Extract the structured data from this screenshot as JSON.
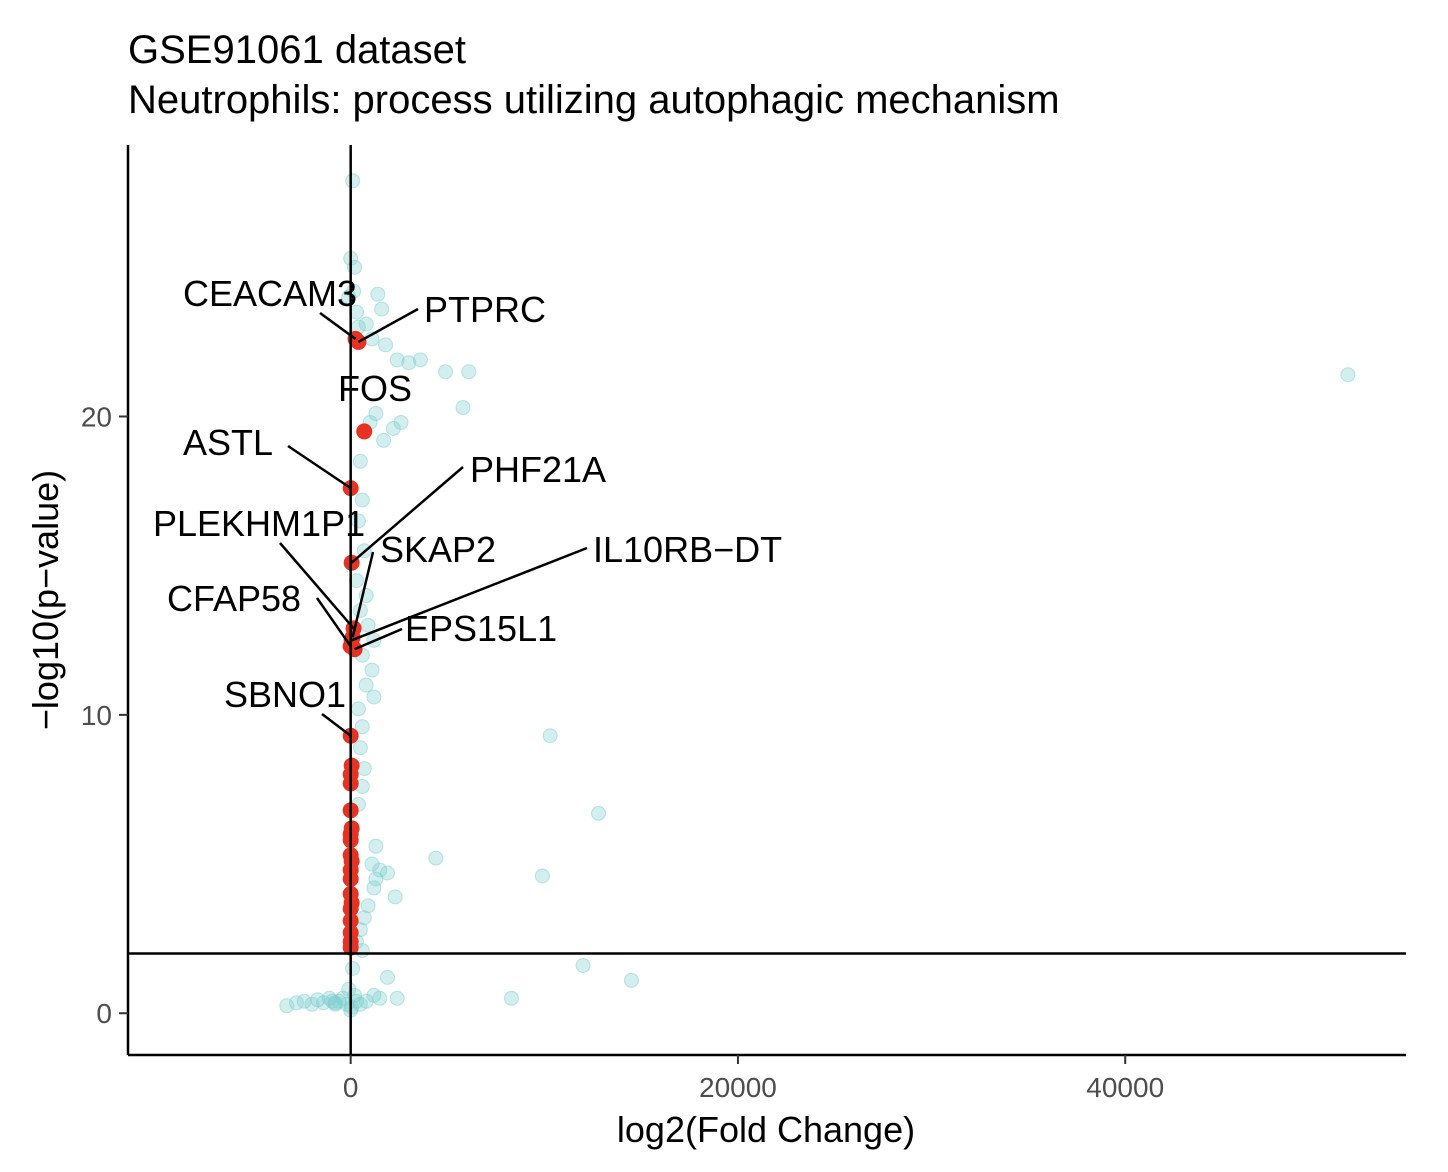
{
  "chart_data": {
    "type": "scatter",
    "title": "GSE91061 dataset",
    "subtitle": "Neutrophils: process utilizing autophagic mechanism",
    "xlabel": "log2(Fold Change)",
    "ylabel": "−log10(p−value)",
    "xlim": [
      -11500,
      54500
    ],
    "ylim": [
      -1.4,
      29.1
    ],
    "x_ticks": [
      {
        "value": 0,
        "label": "0"
      },
      {
        "value": 20000,
        "label": "20000"
      },
      {
        "value": 40000,
        "label": "40000"
      }
    ],
    "y_ticks": [
      {
        "value": 0,
        "label": "0"
      },
      {
        "value": 10,
        "label": "10"
      },
      {
        "value": 20,
        "label": "20"
      }
    ],
    "grid": false,
    "legend": "none",
    "reference_lines": {
      "vertical_x": 0,
      "horizontal_y": 2
    },
    "colors": {
      "background_points": "#7fcdcd",
      "highlighted_points": "#e53222",
      "lines": "#000000"
    },
    "background_points": [
      [
        -950,
        0.4
      ],
      [
        -800,
        0.35
      ],
      [
        -3300,
        0.25
      ],
      [
        -2800,
        0.35
      ],
      [
        -2400,
        0.4
      ],
      [
        -2000,
        0.3
      ],
      [
        -1700,
        0.45
      ],
      [
        -1400,
        0.35
      ],
      [
        -1100,
        0.5
      ],
      [
        -800,
        0.3
      ],
      [
        -600,
        0.4
      ],
      [
        -400,
        0.5
      ],
      [
        -200,
        0.3
      ],
      [
        -100,
        0.8
      ],
      [
        0,
        0.1
      ],
      [
        50,
        0.2
      ],
      [
        100,
        1.5
      ],
      [
        200,
        0.6
      ],
      [
        300,
        0.4
      ],
      [
        500,
        0.3
      ],
      [
        800,
        0.4
      ],
      [
        1200,
        0.6
      ],
      [
        1500,
        0.5
      ],
      [
        1900,
        1.2
      ],
      [
        2400,
        0.5
      ],
      [
        8300,
        0.5
      ],
      [
        12000,
        1.6
      ],
      [
        14500,
        1.1
      ],
      [
        100,
        27.9
      ],
      [
        0,
        25.3
      ],
      [
        200,
        25.0
      ],
      [
        150,
        24.2
      ],
      [
        -100,
        24.0
      ],
      [
        300,
        23.5
      ],
      [
        400,
        23.0
      ],
      [
        1400,
        24.1
      ],
      [
        1600,
        23.6
      ],
      [
        800,
        23.1
      ],
      [
        1100,
        22.6
      ],
      [
        1800,
        22.4
      ],
      [
        2400,
        21.9
      ],
      [
        3000,
        21.8
      ],
      [
        3600,
        21.9
      ],
      [
        4900,
        21.5
      ],
      [
        6100,
        21.5
      ],
      [
        5800,
        20.3
      ],
      [
        1300,
        20.1
      ],
      [
        2600,
        19.8
      ],
      [
        2200,
        19.6
      ],
      [
        1700,
        19.2
      ],
      [
        1000,
        19.8
      ],
      [
        51500,
        21.4
      ],
      [
        500,
        18.5
      ],
      [
        600,
        17.2
      ],
      [
        400,
        16.5
      ],
      [
        700,
        15.5
      ],
      [
        300,
        14.5
      ],
      [
        800,
        14.0
      ],
      [
        500,
        13.5
      ],
      [
        900,
        13.0
      ],
      [
        1200,
        12.5
      ],
      [
        600,
        12.0
      ],
      [
        1100,
        11.5
      ],
      [
        800,
        11.0
      ],
      [
        1200,
        10.6
      ],
      [
        400,
        10.2
      ],
      [
        600,
        9.6
      ],
      [
        500,
        8.9
      ],
      [
        700,
        8.2
      ],
      [
        600,
        7.6
      ],
      [
        400,
        7.0
      ],
      [
        1300,
        5.6
      ],
      [
        1100,
        5.0
      ],
      [
        1500,
        4.8
      ],
      [
        1300,
        4.5
      ],
      [
        1900,
        4.7
      ],
      [
        1200,
        4.2
      ],
      [
        2300,
        3.9
      ],
      [
        900,
        3.6
      ],
      [
        700,
        3.2
      ],
      [
        500,
        2.8
      ],
      [
        300,
        2.4
      ],
      [
        600,
        2.1
      ],
      [
        4400,
        5.2
      ],
      [
        10300,
        9.3
      ],
      [
        12800,
        6.7
      ],
      [
        9900,
        4.6
      ]
    ],
    "highlighted_points": [
      [
        250,
        22.6
      ],
      [
        400,
        22.5
      ],
      [
        700,
        19.5
      ],
      [
        0,
        17.6
      ],
      [
        50,
        15.1
      ],
      [
        150,
        12.9
      ],
      [
        100,
        12.6
      ],
      [
        50,
        12.5
      ],
      [
        0,
        12.3
      ],
      [
        200,
        12.2
      ],
      [
        0,
        9.3
      ],
      [
        50,
        8.3
      ],
      [
        0,
        8.0
      ],
      [
        0,
        7.7
      ],
      [
        0,
        6.8
      ],
      [
        50,
        6.2
      ],
      [
        0,
        6.0
      ],
      [
        0,
        5.8
      ],
      [
        0,
        5.3
      ],
      [
        50,
        5.1
      ],
      [
        0,
        4.8
      ],
      [
        0,
        4.5
      ],
      [
        0,
        4.0
      ],
      [
        50,
        3.7
      ],
      [
        0,
        3.5
      ],
      [
        0,
        3.1
      ],
      [
        0,
        2.7
      ],
      [
        0,
        2.4
      ],
      [
        0,
        2.2
      ]
    ],
    "annotations": [
      {
        "gene": "CEACAM3",
        "x": 250,
        "y": 22.6
      },
      {
        "gene": "PTPRC",
        "x": 400,
        "y": 22.5
      },
      {
        "gene": "FOS",
        "x": 700,
        "y": 19.5
      },
      {
        "gene": "ASTL",
        "x": 0,
        "y": 17.6
      },
      {
        "gene": "PHF21A",
        "x": 50,
        "y": 15.1
      },
      {
        "gene": "PLEKHM1P1",
        "x": 150,
        "y": 12.9
      },
      {
        "gene": "SKAP2",
        "x": 100,
        "y": 12.6
      },
      {
        "gene": "IL10RB−DT",
        "x": 50,
        "y": 12.5
      },
      {
        "gene": "CFAP58",
        "x": 0,
        "y": 12.3
      },
      {
        "gene": "EPS15L1",
        "x": 200,
        "y": 12.2
      },
      {
        "gene": "SBNO1",
        "x": 0,
        "y": 9.3
      }
    ]
  }
}
